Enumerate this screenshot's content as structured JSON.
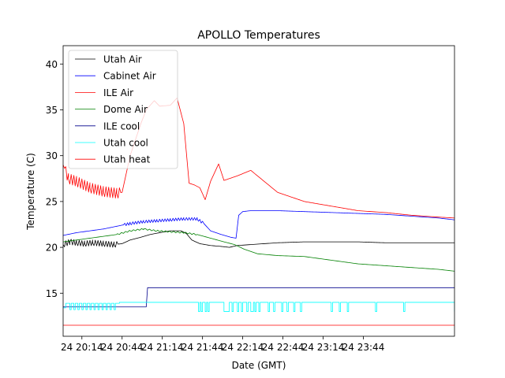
{
  "chart_data": {
    "type": "line",
    "title": "APOLLO Temperatures",
    "xlabel": "Date (GMT)",
    "ylabel": "Temperature (C)",
    "xlim": [
      1200,
      1492
    ],
    "ylim": [
      10.3,
      42
    ],
    "xticks": [
      {
        "t": 1214,
        "label": "24 20:14"
      },
      {
        "t": 1244,
        "label": "24 20:44"
      },
      {
        "t": 1274,
        "label": "24 21:14"
      },
      {
        "t": 1304,
        "label": "24 21:44"
      },
      {
        "t": 1334,
        "label": "24 22:14"
      },
      {
        "t": 1364,
        "label": "24 22:44"
      },
      {
        "t": 1394,
        "label": "24 23:14"
      },
      {
        "t": 1424,
        "label": "24 23:44"
      }
    ],
    "yticks": [
      15,
      20,
      25,
      30,
      35,
      40
    ],
    "grid": false,
    "legend_position": "top-left",
    "x_unit": "minutes since 24 00:00 GMT",
    "series": [
      {
        "name": "Utah Air",
        "color": "#000000",
        "x": [
          1200,
          1205,
          1210,
          1216,
          1222,
          1230,
          1238,
          1244,
          1250,
          1258,
          1265,
          1272,
          1280,
          1288,
          1292,
          1296,
          1302,
          1310,
          1318,
          1324,
          1330,
          1340,
          1360,
          1380,
          1400,
          1420,
          1440,
          1460,
          1480,
          1492
        ],
        "y": [
          20.3,
          20.6,
          20.5,
          20.4,
          20.5,
          20.4,
          20.3,
          20.4,
          20.8,
          21.1,
          21.4,
          21.6,
          21.8,
          21.8,
          21.5,
          20.8,
          20.4,
          20.2,
          20.1,
          20.0,
          20.2,
          20.3,
          20.5,
          20.6,
          20.6,
          20.6,
          20.5,
          20.5,
          20.5,
          20.5
        ],
        "oscillation": {
          "from": 1200,
          "to": 1240,
          "amplitude": 0.6,
          "period": 2
        }
      },
      {
        "name": "Cabinet Air",
        "color": "#0000ff",
        "x": [
          1200,
          1210,
          1220,
          1230,
          1240,
          1250,
          1260,
          1270,
          1280,
          1290,
          1300,
          1305,
          1310,
          1318,
          1325,
          1329,
          1331,
          1334,
          1340,
          1360,
          1380,
          1400,
          1420,
          1440,
          1460,
          1480,
          1492
        ],
        "y": [
          21.3,
          21.6,
          21.8,
          22.0,
          22.3,
          22.6,
          22.8,
          22.9,
          23.0,
          23.1,
          23.1,
          22.6,
          21.8,
          21.4,
          21.1,
          21.0,
          23.5,
          23.9,
          24.0,
          24.0,
          23.9,
          23.8,
          23.7,
          23.6,
          23.4,
          23.2,
          23.0
        ],
        "oscillation": {
          "from": 1246,
          "to": 1304,
          "amplitude": 0.3,
          "period": 2
        }
      },
      {
        "name": "ILE Air",
        "color": "#ff0000",
        "x": [
          1200,
          1204,
          1210,
          1220,
          1230,
          1240,
          1244,
          1250,
          1258,
          1262,
          1268,
          1272,
          1280,
          1285,
          1290,
          1294,
          1298,
          1302,
          1306,
          1310,
          1316,
          1320,
          1330,
          1340,
          1360,
          1380,
          1400,
          1420,
          1440,
          1460,
          1480,
          1492
        ],
        "y": [
          29.0,
          27.5,
          27.2,
          26.5,
          26.1,
          25.9,
          26.0,
          30.0,
          33.5,
          35.0,
          36.0,
          35.4,
          35.5,
          36.3,
          33.5,
          27.0,
          26.8,
          26.5,
          25.2,
          27.2,
          29.1,
          27.3,
          27.8,
          28.4,
          26.0,
          25.0,
          24.5,
          24.0,
          23.8,
          23.5,
          23.3,
          23.2
        ],
        "oscillation": {
          "from": 1202,
          "to": 1242,
          "amplitude": 1.1,
          "period": 2
        }
      },
      {
        "name": "Dome Air",
        "color": "#008000",
        "x": [
          1200,
          1210,
          1220,
          1230,
          1240,
          1250,
          1260,
          1270,
          1280,
          1290,
          1300,
          1310,
          1320,
          1328,
          1335,
          1345,
          1360,
          1380,
          1400,
          1420,
          1440,
          1460,
          1480,
          1492
        ],
        "y": [
          20.6,
          20.8,
          21.0,
          21.2,
          21.4,
          21.8,
          22.0,
          21.8,
          21.7,
          21.6,
          21.4,
          21.0,
          20.6,
          20.3,
          19.8,
          19.3,
          19.1,
          19.0,
          18.6,
          18.2,
          18.0,
          17.8,
          17.6,
          17.4
        ],
        "oscillation": {
          "from": 1240,
          "to": 1300,
          "amplitude": 0.15,
          "period": 3
        }
      },
      {
        "name": "ILE cool",
        "color": "#00008b",
        "x": [
          1200,
          1262,
          1263,
          1492
        ],
        "y": [
          13.5,
          13.5,
          15.6,
          15.6
        ]
      },
      {
        "name": "Utah cool",
        "color": "#00ffff",
        "steps": [
          [
            1200,
            13.4
          ],
          [
            1202,
            13.9
          ],
          [
            1205,
            13.2
          ],
          [
            1206,
            13.9
          ],
          [
            1208,
            13.2
          ],
          [
            1209,
            13.9
          ],
          [
            1211,
            13.2
          ],
          [
            1212,
            13.9
          ],
          [
            1214,
            13.2
          ],
          [
            1215,
            13.9
          ],
          [
            1217,
            13.2
          ],
          [
            1218,
            13.9
          ],
          [
            1220,
            13.2
          ],
          [
            1221,
            13.9
          ],
          [
            1223,
            13.2
          ],
          [
            1224,
            13.9
          ],
          [
            1226,
            13.2
          ],
          [
            1227,
            13.9
          ],
          [
            1229,
            13.2
          ],
          [
            1230,
            13.9
          ],
          [
            1232,
            13.2
          ],
          [
            1233,
            13.9
          ],
          [
            1235,
            13.2
          ],
          [
            1236,
            13.9
          ],
          [
            1238,
            13.2
          ],
          [
            1239,
            13.9
          ],
          [
            1242,
            14.0
          ],
          [
            1300,
            14.0
          ],
          [
            1301,
            13.0
          ],
          [
            1302,
            14.0
          ],
          [
            1303,
            13.0
          ],
          [
            1304,
            14.0
          ],
          [
            1306,
            13.0
          ],
          [
            1307,
            14.0
          ],
          [
            1308,
            13.0
          ],
          [
            1309,
            14.0
          ],
          [
            1320,
            13.0
          ],
          [
            1324,
            14.0
          ],
          [
            1326,
            13.0
          ],
          [
            1327,
            14.0
          ],
          [
            1330,
            13.0
          ],
          [
            1331,
            14.0
          ],
          [
            1333,
            13.0
          ],
          [
            1334,
            14.0
          ],
          [
            1337,
            13.0
          ],
          [
            1338,
            14.0
          ],
          [
            1340,
            13.0
          ],
          [
            1342,
            14.0
          ],
          [
            1343,
            13.0
          ],
          [
            1344,
            14.0
          ],
          [
            1346,
            13.0
          ],
          [
            1347,
            14.0
          ],
          [
            1353,
            13.0
          ],
          [
            1354,
            14.0
          ],
          [
            1357,
            13.0
          ],
          [
            1358,
            14.0
          ],
          [
            1363,
            13.0
          ],
          [
            1364,
            14.0
          ],
          [
            1367,
            13.0
          ],
          [
            1368,
            14.0
          ],
          [
            1372,
            13.0
          ],
          [
            1373,
            14.0
          ],
          [
            1377,
            13.0
          ],
          [
            1378,
            14.0
          ],
          [
            1400,
            13.0
          ],
          [
            1401,
            14.0
          ],
          [
            1406,
            13.0
          ],
          [
            1407,
            14.0
          ],
          [
            1412,
            13.0
          ],
          [
            1413,
            14.0
          ],
          [
            1433,
            13.0
          ],
          [
            1434,
            14.0
          ],
          [
            1454,
            13.0
          ],
          [
            1455,
            14.0
          ],
          [
            1492,
            13.0
          ]
        ]
      },
      {
        "name": "Utah heat",
        "color": "#ff0000",
        "x": [
          1200,
          1492
        ],
        "y": [
          11.5,
          11.5
        ]
      }
    ]
  }
}
